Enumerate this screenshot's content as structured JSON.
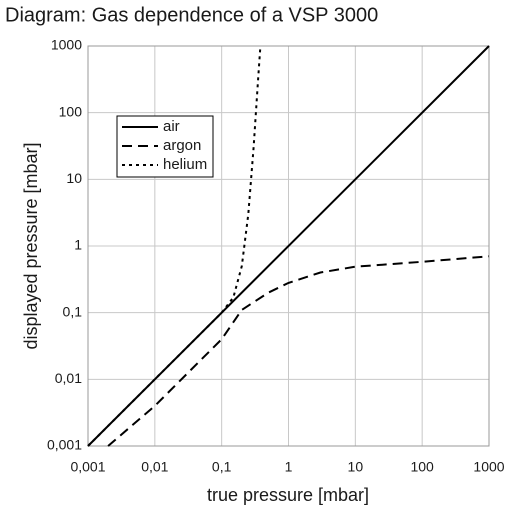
{
  "chart_data": {
    "type": "line",
    "title": "Diagram: Gas dependence of a VSP 3000",
    "xlabel": "true pressure [mbar]",
    "ylabel": "displayed pressure [mbar]",
    "xscale": "log",
    "yscale": "log",
    "grid": true,
    "legend": "upper left",
    "xlim": [
      0.001,
      1000
    ],
    "ylim": [
      0.001,
      1000
    ],
    "xticks": [
      {
        "value": 0.001,
        "label": "0,001"
      },
      {
        "value": 0.01,
        "label": "0,01"
      },
      {
        "value": 0.1,
        "label": "0,1"
      },
      1,
      10,
      100,
      1000
    ],
    "yticks": [
      {
        "value": 0.001,
        "label": "0,001"
      },
      {
        "value": 0.01,
        "label": "0,01"
      },
      {
        "value": 0.1,
        "label": "0,1"
      },
      1,
      10,
      100,
      1000
    ],
    "series": [
      {
        "name": "air",
        "color": "#000000",
        "dash": "solid",
        "x": [
          0.001,
          1000
        ],
        "values": [
          0.001,
          1000
        ]
      },
      {
        "name": "argon",
        "color": "#000000",
        "dash": "dashed",
        "x": [
          0.002,
          0.01,
          0.05,
          0.1,
          0.2,
          0.5,
          1,
          3,
          10,
          100,
          1000
        ],
        "values": [
          0.001,
          0.004,
          0.02,
          0.04,
          0.11,
          0.2,
          0.28,
          0.4,
          0.49,
          0.58,
          0.7
        ]
      },
      {
        "name": "helium",
        "color": "#000000",
        "dash": "dotted",
        "x": [
          0.001,
          0.01,
          0.1,
          0.15,
          0.2,
          0.25,
          0.3,
          0.35,
          0.38
        ],
        "values": [
          0.001,
          0.01,
          0.1,
          0.17,
          0.5,
          3,
          30,
          300,
          1000
        ]
      }
    ]
  }
}
